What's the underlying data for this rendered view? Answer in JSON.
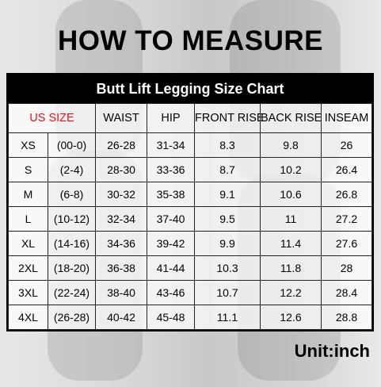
{
  "header": {
    "title": "HOW TO MEASURE"
  },
  "table": {
    "title": "Butt Lift Legging Size Chart",
    "columns": [
      "US SIZE",
      "WAIST",
      "HIP",
      "FRONT RISE",
      "BACK RISE",
      "INSEAM"
    ],
    "rows": [
      [
        "XS",
        "(00-0)",
        "26-28",
        "31-34",
        "8.3",
        "9.8",
        "26"
      ],
      [
        "S",
        "(2-4)",
        "28-30",
        "33-36",
        "8.7",
        "10.2",
        "26.4"
      ],
      [
        "M",
        "(6-8)",
        "30-32",
        "35-38",
        "9.1",
        "10.6",
        "26.8"
      ],
      [
        "L",
        "(10-12)",
        "32-34",
        "37-40",
        "9.5",
        "11",
        "27.2"
      ],
      [
        "XL",
        "(14-16)",
        "34-36",
        "39-42",
        "9.9",
        "11.4",
        "27.6"
      ],
      [
        "2XL",
        "(18-20)",
        "36-38",
        "41-44",
        "10.3",
        "11.8",
        "28"
      ],
      [
        "3XL",
        "(22-24)",
        "38-40",
        "43-46",
        "10.7",
        "12.2",
        "28.4"
      ],
      [
        "4XL",
        "(26-28)",
        "40-42",
        "45-48",
        "11.1",
        "12.6",
        "28.8"
      ]
    ]
  },
  "footer": {
    "unit": "Unit:inch"
  }
}
